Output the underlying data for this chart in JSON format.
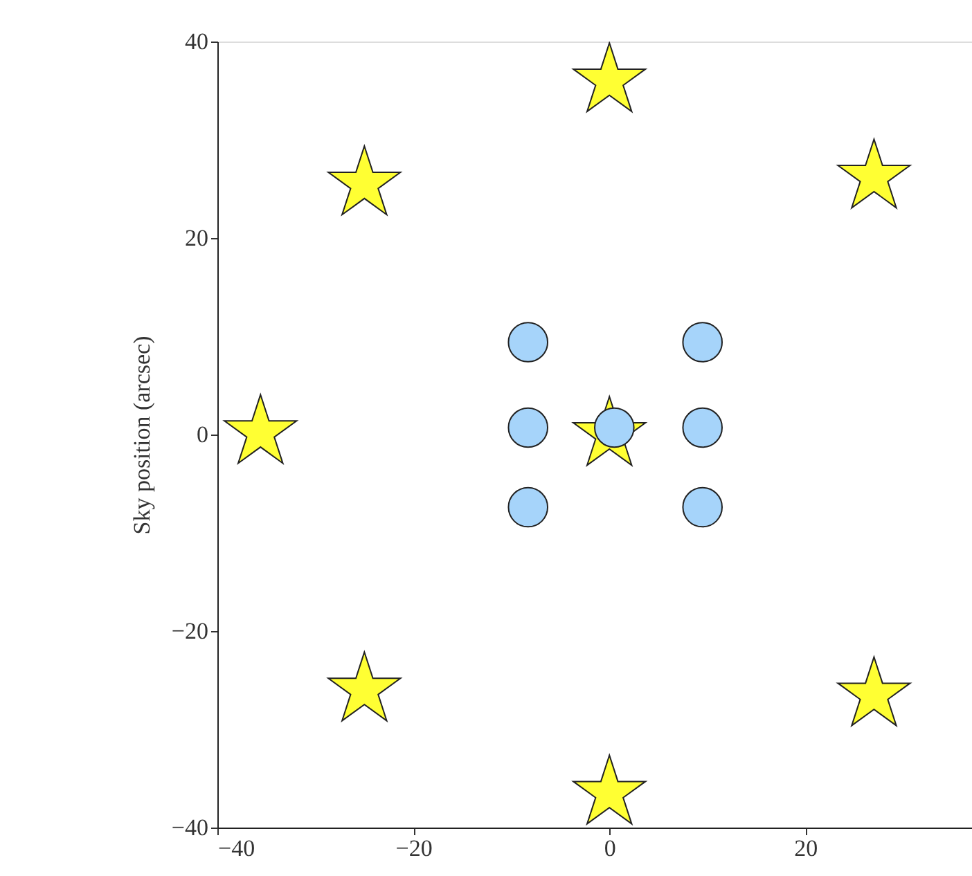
{
  "chart_data": {
    "type": "scatter",
    "ylabel": "Sky position (arcsec)",
    "xlim": [
      -40,
      37
    ],
    "xticks": [
      -40,
      -20,
      0,
      20
    ],
    "ylim": [
      -40,
      40
    ],
    "yticks": [
      -40,
      -20,
      0,
      20,
      40
    ],
    "grid": false,
    "series": [
      {
        "color": "#ffff33",
        "marker": "star",
        "x": [
          0,
          -25,
          27,
          -35.6,
          0,
          -25,
          27,
          0
        ],
        "values": [
          36,
          25.5,
          26.2,
          0.2,
          0,
          -26,
          -26.5,
          -36.5
        ]
      },
      {
        "color": "#a6d4fa",
        "marker": "circle",
        "x": [
          -8.3,
          9.5,
          -8.3,
          0.5,
          9.5,
          -8.3,
          9.5
        ],
        "values": [
          9.4,
          9.4,
          0.7,
          0.7,
          0.7,
          -7.4,
          -7.4
        ]
      }
    ]
  }
}
